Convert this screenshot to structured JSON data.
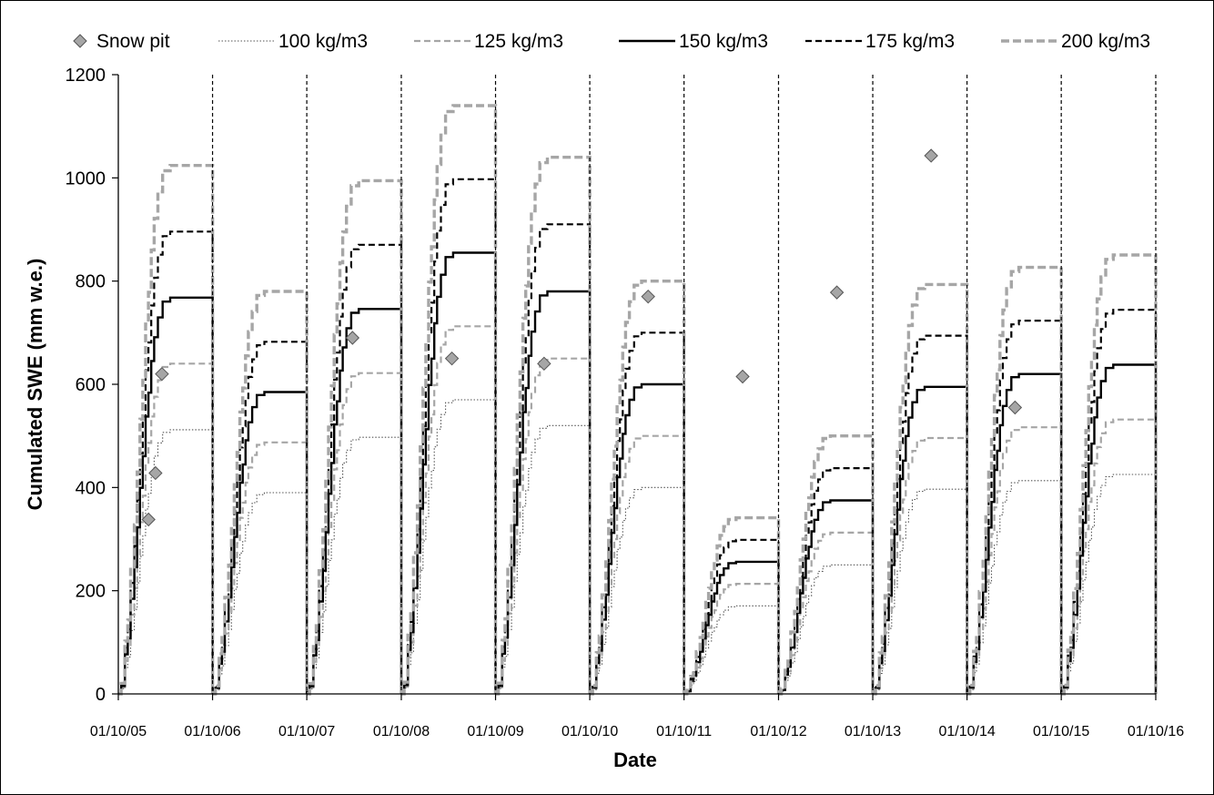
{
  "chart_data": {
    "type": "line",
    "title": "",
    "xlabel": "Date",
    "ylabel": "Cumulated SWE (mm w.e.)",
    "ylim": [
      0,
      1200
    ],
    "yticks": [
      0,
      200,
      400,
      600,
      800,
      1000,
      1200
    ],
    "xlim": [
      "2005-10-01",
      "2016-10-01"
    ],
    "xticks": [
      "01/10/05",
      "01/10/06",
      "01/10/07",
      "01/10/08",
      "01/10/09",
      "01/10/10",
      "01/10/11",
      "01/10/12",
      "01/10/13",
      "01/10/14",
      "01/10/15",
      "01/10/16"
    ],
    "grid": false,
    "legend_position": "top",
    "season_separators": "dashed vertical lines at each 01/10",
    "seasons": [
      {
        "start": "2005-10-01",
        "end": "2006-10-01",
        "final_swe_150": 768
      },
      {
        "start": "2006-10-01",
        "end": "2007-10-01",
        "final_swe_150": 585
      },
      {
        "start": "2007-10-01",
        "end": "2008-10-01",
        "final_swe_150": 746
      },
      {
        "start": "2008-10-01",
        "end": "2009-10-01",
        "final_swe_150": 855
      },
      {
        "start": "2009-10-01",
        "end": "2010-10-01",
        "final_swe_150": 780
      },
      {
        "start": "2010-10-01",
        "end": "2011-10-01",
        "final_swe_150": 600
      },
      {
        "start": "2011-10-01",
        "end": "2012-10-01",
        "final_swe_150": 256
      },
      {
        "start": "2012-10-01",
        "end": "2013-10-01",
        "final_swe_150": 375
      },
      {
        "start": "2013-10-01",
        "end": "2014-10-01",
        "final_swe_150": 595
      },
      {
        "start": "2014-10-01",
        "end": "2015-10-01",
        "final_swe_150": 620
      },
      {
        "start": "2015-10-01",
        "end": "2016-10-01",
        "final_swe_150": 638
      }
    ],
    "series": [
      {
        "name": "Snow pit",
        "kind": "marker",
        "color": "#a6a6a6",
        "points": [
          {
            "x": "2006-01-26",
            "y": 338
          },
          {
            "x": "2006-02-22",
            "y": 428
          },
          {
            "x": "2006-03-19",
            "y": 620
          },
          {
            "x": "2008-03-26",
            "y": 690
          },
          {
            "x": "2009-04-15",
            "y": 650
          },
          {
            "x": "2010-04-07",
            "y": 640
          },
          {
            "x": "2011-05-15",
            "y": 770
          },
          {
            "x": "2012-05-15",
            "y": 615
          },
          {
            "x": "2013-05-15",
            "y": 778
          },
          {
            "x": "2014-05-15",
            "y": 1043
          },
          {
            "x": "2015-04-05",
            "y": 555
          }
        ]
      },
      {
        "name": "100 kg/m3",
        "density": 100,
        "kind": "line",
        "style": "dotted",
        "color": "#555555"
      },
      {
        "name": "125 kg/m3",
        "density": 125,
        "kind": "line",
        "style": "dashed",
        "color": "#a6a6a6"
      },
      {
        "name": "150 kg/m3",
        "density": 150,
        "kind": "line",
        "style": "solid",
        "color": "#000000"
      },
      {
        "name": "175 kg/m3",
        "density": 175,
        "kind": "line",
        "style": "dashed",
        "color": "#000000"
      },
      {
        "name": "200 kg/m3",
        "density": 200,
        "kind": "line",
        "style": "dashed-thick",
        "color": "#a6a6a6"
      }
    ]
  }
}
